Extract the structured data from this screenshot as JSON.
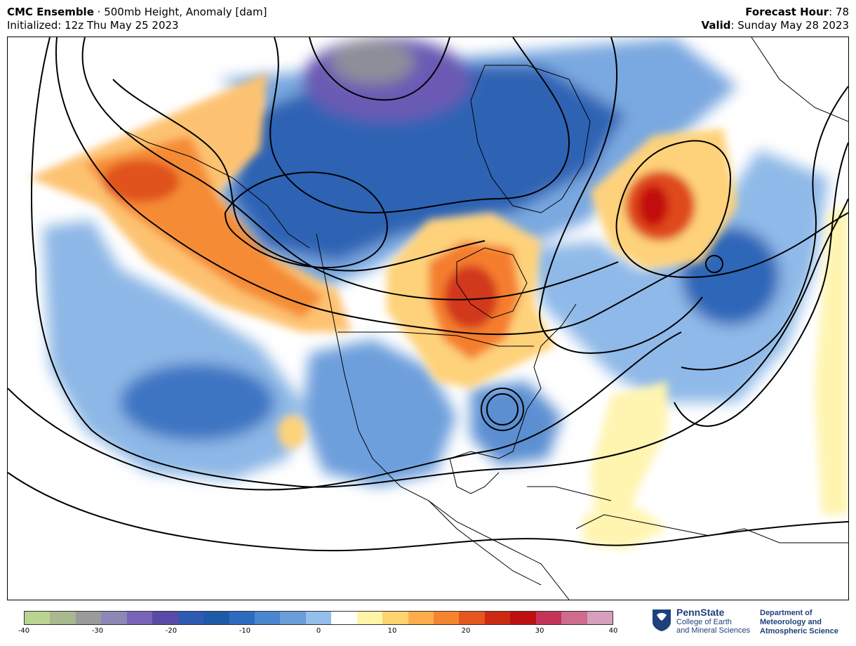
{
  "header": {
    "model": "CMC Ensemble",
    "separator": " · ",
    "field": "500mb Height, Anomaly [dam]",
    "initialized": "Initialized: 12z Thu May 25 2023",
    "forecast_hour_label": "Forecast Hour",
    "forecast_hour_value": ": 78",
    "valid_label": "Valid",
    "valid_value": ": Sunday May 28 2023"
  },
  "colorbar": {
    "ticks": [
      "-40",
      "-30",
      "-20",
      "-10",
      "0",
      "10",
      "20",
      "30",
      "40"
    ],
    "range": [
      -40,
      40
    ],
    "colors": [
      "#b9d48f",
      "#a9b88e",
      "#9a9a9a",
      "#8c88b6",
      "#7a64b8",
      "#5a4aa8",
      "#2f5ab4",
      "#1f5aa8",
      "#2c6bbf",
      "#4a86cf",
      "#6a9ed8",
      "#93bfea",
      "#ffffff",
      "#fff4a8",
      "#ffd36e",
      "#fdae4a",
      "#f5842e",
      "#e4561c",
      "#cc2a12",
      "#bf1010",
      "#c6335a",
      "#cf6b8d",
      "#d79fbd"
    ]
  },
  "logo": {
    "name": "PennState",
    "college_line1": "College of Earth",
    "college_line2": "and Mineral Sciences",
    "dept_line1": "Department of",
    "dept_line2": "Meteorology and",
    "dept_line3": "Atmospheric Science"
  }
}
